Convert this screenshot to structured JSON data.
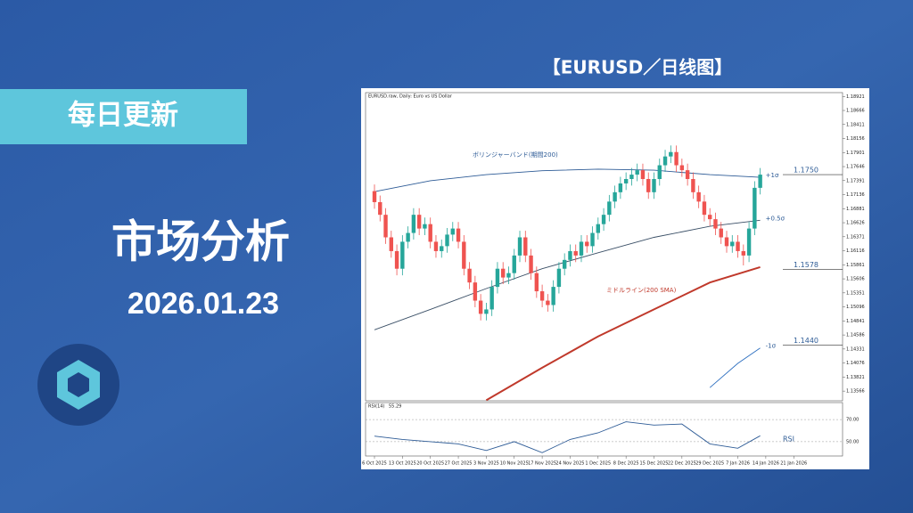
{
  "header": {
    "badge": "每日更新",
    "title": "市场分析",
    "date": "2026.01.23"
  },
  "chart_data": {
    "type": "candlestick",
    "title": "【EURUSD／日线图】",
    "subtitle": "EURUSD.raw, Daily: Euro vs US Dollar",
    "categories": [
      "6 Oct 2025",
      null,
      null,
      null,
      null,
      "13 Oct 2025",
      null,
      null,
      null,
      null,
      "20 Oct 2025",
      null,
      null,
      null,
      null,
      "27 Oct 2025",
      null,
      null,
      null,
      null,
      "3 Nov 2025",
      null,
      null,
      null,
      null,
      "10 Nov 2025",
      null,
      null,
      null,
      null,
      "17 Nov 2025",
      null,
      null,
      null,
      null,
      "24 Nov 2025",
      null,
      null,
      null,
      null,
      "1 Dec 2025",
      null,
      null,
      null,
      null,
      "8 Dec 2025",
      null,
      null,
      null,
      null,
      "15 Dec 2025",
      null,
      null,
      null,
      null,
      "22 Dec 2025",
      null,
      null,
      null,
      null,
      "29 Dec 2025",
      null,
      null,
      null,
      null,
      "7 Jan 2026",
      null,
      null,
      null,
      null,
      "14 Jan 2026",
      null,
      null,
      null,
      null,
      "21 Jan 2026"
    ],
    "open": [
      1.172,
      1.17,
      1.1677,
      1.1636,
      1.1611,
      1.1579,
      1.1628,
      1.1644,
      1.1677,
      1.1652,
      1.166,
      1.1628,
      1.1611,
      1.162,
      1.1641,
      1.1652,
      1.1628,
      1.1579,
      1.1554,
      1.1521,
      1.1497,
      1.1505,
      1.1546,
      1.1579,
      1.1563,
      1.1571,
      1.1603,
      1.1636,
      1.1603,
      1.1571,
      1.1538,
      1.1521,
      1.1513,
      1.1546,
      1.1579,
      1.1595,
      1.1611,
      1.1603,
      1.1628,
      1.162,
      1.1644,
      1.166,
      1.1677,
      1.1701,
      1.1718,
      1.1734,
      1.1742,
      1.175,
      1.1758,
      1.1742,
      1.1718,
      1.1742,
      1.1767,
      1.1783,
      1.1791,
      1.1767,
      1.1758,
      1.1742,
      1.1718,
      1.1701,
      1.1677,
      1.1669,
      1.1652,
      1.1636,
      1.162,
      1.1628,
      1.1611,
      1.1603,
      1.1652,
      1.1726,
      null,
      null,
      null,
      null,
      null,
      null
    ],
    "high": [
      1.1732,
      1.1712,
      1.1689,
      1.1648,
      1.1623,
      1.164,
      1.1656,
      1.1689,
      1.1689,
      1.1672,
      1.1672,
      1.164,
      1.1632,
      1.1653,
      1.1664,
      1.1664,
      1.164,
      1.1591,
      1.1566,
      1.1533,
      1.1517,
      1.1558,
      1.1591,
      1.1591,
      1.1583,
      1.1615,
      1.1648,
      1.1648,
      1.1615,
      1.1583,
      1.155,
      1.1533,
      1.1558,
      1.1591,
      1.1607,
      1.1623,
      1.1623,
      1.164,
      1.164,
      1.1656,
      1.1672,
      1.1689,
      1.1713,
      1.173,
      1.1746,
      1.1754,
      1.1762,
      1.177,
      1.177,
      1.1754,
      1.1754,
      1.1779,
      1.1795,
      1.1803,
      1.1803,
      1.1779,
      1.177,
      1.1754,
      1.173,
      1.1713,
      1.1689,
      1.1681,
      1.1664,
      1.1648,
      1.164,
      1.164,
      1.1623,
      1.1664,
      1.1738,
      1.1762,
      null,
      null,
      null,
      null,
      null,
      null
    ],
    "low": [
      1.1688,
      1.1665,
      1.1624,
      1.1599,
      1.1567,
      1.1567,
      1.1616,
      1.1632,
      1.164,
      1.164,
      1.1616,
      1.1599,
      1.1599,
      1.1608,
      1.1629,
      1.1616,
      1.1567,
      1.1542,
      1.1509,
      1.1485,
      1.1485,
      1.1493,
      1.1534,
      1.1551,
      1.1551,
      1.1559,
      1.1591,
      1.1591,
      1.1559,
      1.1526,
      1.1509,
      1.1501,
      1.1501,
      1.1534,
      1.1567,
      1.1583,
      1.1591,
      1.1591,
      1.1608,
      1.1608,
      1.1632,
      1.1648,
      1.1665,
      1.1689,
      1.1706,
      1.1722,
      1.173,
      1.1738,
      1.173,
      1.1706,
      1.1706,
      1.173,
      1.1755,
      1.1771,
      1.1755,
      1.1746,
      1.173,
      1.1706,
      1.1689,
      1.1665,
      1.1657,
      1.164,
      1.1624,
      1.1608,
      1.1608,
      1.1599,
      1.1585,
      1.1591,
      1.164,
      1.1714,
      null,
      null,
      null,
      null,
      null,
      null
    ],
    "close": [
      1.17,
      1.1677,
      1.1636,
      1.1611,
      1.1579,
      1.1628,
      1.1644,
      1.1677,
      1.1652,
      1.166,
      1.1628,
      1.1611,
      1.162,
      1.1641,
      1.1652,
      1.1628,
      1.1579,
      1.1554,
      1.1521,
      1.1497,
      1.1505,
      1.1546,
      1.1579,
      1.1563,
      1.1571,
      1.1603,
      1.1636,
      1.1603,
      1.1571,
      1.1538,
      1.1521,
      1.1513,
      1.1546,
      1.1579,
      1.1595,
      1.1611,
      1.1603,
      1.1628,
      1.162,
      1.1644,
      1.166,
      1.1677,
      1.1701,
      1.1718,
      1.1734,
      1.1742,
      1.175,
      1.1758,
      1.1742,
      1.1718,
      1.1742,
      1.1767,
      1.1783,
      1.1791,
      1.1767,
      1.1758,
      1.1742,
      1.1718,
      1.1701,
      1.1677,
      1.1669,
      1.1652,
      1.1636,
      1.162,
      1.1628,
      1.1611,
      1.1603,
      1.1652,
      1.1726,
      1.175,
      null,
      null,
      null,
      null,
      null,
      null
    ],
    "up_color": "#26a69a",
    "down_color": "#ef5350",
    "ylim": [
      1.1339,
      1.1899
    ],
    "yticks": [
      1.18921,
      1.18666,
      1.18411,
      1.18156,
      1.17901,
      1.17646,
      1.17391,
      1.17136,
      1.16881,
      1.16626,
      1.16371,
      1.16116,
      1.15861,
      1.15606,
      1.15351,
      1.15096,
      1.14841,
      1.14586,
      1.14331,
      1.14076,
      1.13821,
      1.13566
    ],
    "bands": [
      {
        "name": "+1σ",
        "color": "#2d5b96",
        "x": [
          0,
          10,
          20,
          30,
          40,
          50,
          60,
          69
        ],
        "values": [
          1.1719,
          1.1739,
          1.175,
          1.1757,
          1.176,
          1.1758,
          1.175,
          1.1745
        ]
      },
      {
        "name": "+0.5σ",
        "color": "#3a4f66",
        "x": [
          0,
          10,
          20,
          30,
          40,
          50,
          60,
          69
        ],
        "values": [
          1.1468,
          1.1505,
          1.1543,
          1.1579,
          1.1608,
          1.1636,
          1.1656,
          1.1667
        ]
      },
      {
        "name": "ミドルライン(200 SMA)",
        "color": "#c0392b",
        "x": [
          20,
          30,
          40,
          50,
          60,
          69
        ],
        "values": [
          1.134,
          1.1399,
          1.1456,
          1.1505,
          1.1554,
          1.1582
        ]
      },
      {
        "name": "-1σ",
        "color": "#2d6fc0",
        "x": [
          60,
          65,
          69
        ],
        "values": [
          1.1363,
          1.1407,
          1.1435
        ]
      }
    ],
    "annotations": [
      "ボリンジャーバンド(期間200)"
    ],
    "levels": [
      {
        "value": 1.175,
        "label": "1.1750"
      },
      {
        "value": 1.1578,
        "label": "1.1578"
      },
      {
        "value": 1.144,
        "label": "1.1440"
      }
    ],
    "rsi": {
      "name": "RSI(14)",
      "label": "RSI",
      "color": "#2d5b96",
      "x": [
        0,
        5,
        10,
        15,
        20,
        25,
        30,
        35,
        40,
        45,
        50,
        55,
        60,
        65,
        69
      ],
      "values": [
        55,
        52,
        50,
        48,
        42,
        50,
        40,
        52,
        58,
        68,
        65,
        66,
        48,
        44,
        55.29
      ],
      "ylim": [
        37,
        83
      ],
      "yticks": [
        {
          "value": 70,
          "label": "70.00"
        },
        {
          "value": 50,
          "label": "50.00"
        }
      ]
    }
  }
}
